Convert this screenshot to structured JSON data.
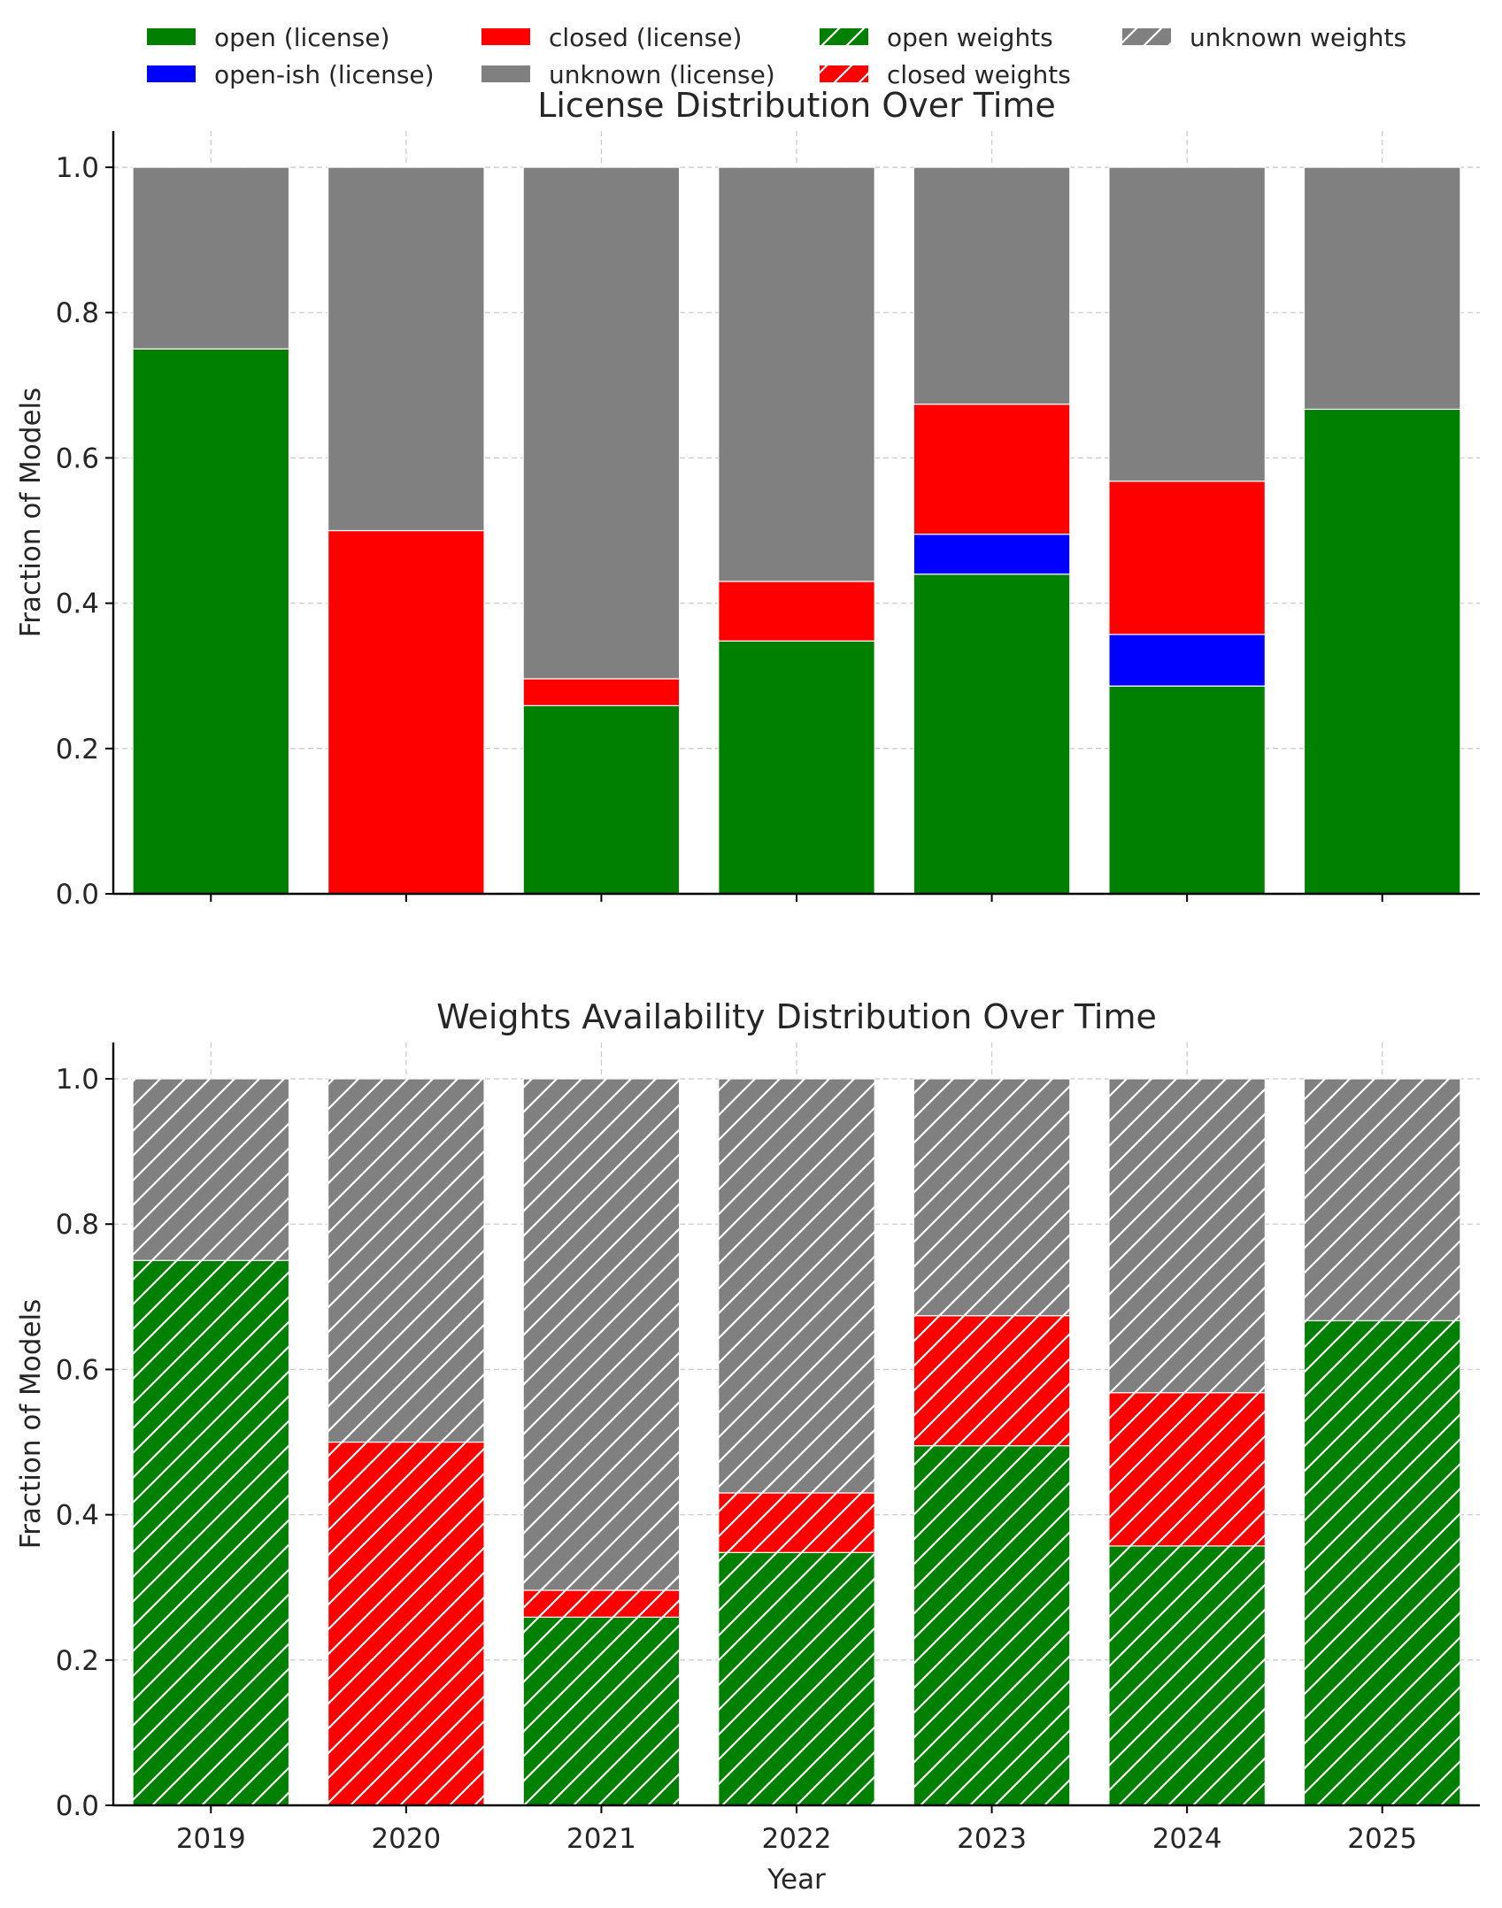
{
  "legend": {
    "placement": "top-center",
    "items": [
      {
        "label": "open (license)",
        "color": "#008000",
        "hatch": false
      },
      {
        "label": "open-ish (license)",
        "color": "#0000ff",
        "hatch": false
      },
      {
        "label": "closed (license)",
        "color": "#ff0000",
        "hatch": false
      },
      {
        "label": "unknown (license)",
        "color": "#808080",
        "hatch": false
      },
      {
        "label": "open weights",
        "color": "#008000",
        "hatch": true
      },
      {
        "label": "closed weights",
        "color": "#ff0000",
        "hatch": true
      },
      {
        "label": "unknown weights",
        "color": "#808080",
        "hatch": true
      }
    ]
  },
  "chart_data": [
    {
      "type": "bar",
      "stacked": true,
      "title": "License Distribution Over Time",
      "xlabel": "",
      "ylabel": "Fraction of Models",
      "ylim": [
        0,
        1.05
      ],
      "yticks": [
        "0.0",
        "0.2",
        "0.4",
        "0.6",
        "0.8",
        "1.0"
      ],
      "grid": true,
      "show_xticklabels": false,
      "hatch": false,
      "categories": [
        "2019",
        "2020",
        "2021",
        "2022",
        "2023",
        "2024",
        "2025"
      ],
      "series": [
        {
          "name": "open (license)",
          "color": "#008000",
          "values": [
            0.75,
            0.0,
            0.259,
            0.348,
            0.44,
            0.286,
            0.667
          ]
        },
        {
          "name": "open-ish (license)",
          "color": "#0000ff",
          "values": [
            0.0,
            0.0,
            0.0,
            0.0,
            0.055,
            0.071,
            0.0
          ]
        },
        {
          "name": "closed (license)",
          "color": "#ff0000",
          "values": [
            0.0,
            0.5,
            0.037,
            0.082,
            0.179,
            0.211,
            0.0
          ]
        },
        {
          "name": "unknown (license)",
          "color": "#808080",
          "values": [
            0.25,
            0.5,
            0.704,
            0.57,
            0.326,
            0.432,
            0.333
          ]
        }
      ]
    },
    {
      "type": "bar",
      "stacked": true,
      "title": "Weights Availability Distribution Over Time",
      "xlabel": "Year",
      "ylabel": "Fraction of Models",
      "ylim": [
        0,
        1.05
      ],
      "yticks": [
        "0.0",
        "0.2",
        "0.4",
        "0.6",
        "0.8",
        "1.0"
      ],
      "grid": true,
      "show_xticklabels": true,
      "hatch": true,
      "categories": [
        "2019",
        "2020",
        "2021",
        "2022",
        "2023",
        "2024",
        "2025"
      ],
      "series": [
        {
          "name": "open weights",
          "color": "#008000",
          "values": [
            0.75,
            0.0,
            0.259,
            0.348,
            0.495,
            0.357,
            0.667
          ]
        },
        {
          "name": "closed weights",
          "color": "#ff0000",
          "values": [
            0.0,
            0.5,
            0.037,
            0.082,
            0.179,
            0.211,
            0.0
          ]
        },
        {
          "name": "unknown weights",
          "color": "#808080",
          "values": [
            0.25,
            0.5,
            0.704,
            0.57,
            0.326,
            0.432,
            0.333
          ]
        }
      ]
    }
  ]
}
